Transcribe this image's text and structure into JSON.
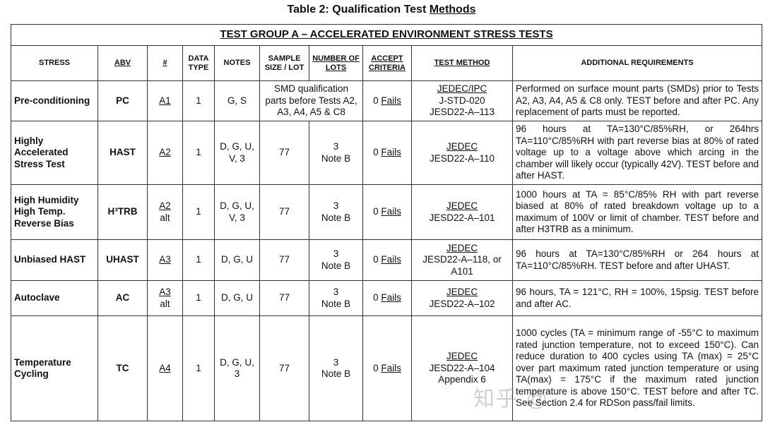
{
  "title": {
    "prefix": "Table 2:  Qualification Test ",
    "underlined": "Methods"
  },
  "group_title": "TEST GROUP A – ACCELERATED ENVIRONMENT STRESS TESTS",
  "headers": {
    "stress": "STRESS",
    "abv": "ABV",
    "num": "#",
    "data_type": "DATA TYPE",
    "notes": "NOTES",
    "sample": "SAMPLE SIZE / LOT",
    "lots": "NUMBER OF LOTS",
    "accept": "ACCEPT CRITERIA",
    "method": "TEST METHOD",
    "additional": "ADDITIONAL REQUIREMENTS"
  },
  "rows": [
    {
      "stress": "Pre-conditioning",
      "abv": "PC",
      "num": "A1",
      "num2": "",
      "data_type": "1",
      "notes": "G, S",
      "sample": "SMD qualification parts before Tests A2, A3, A4, A5 & C8",
      "lots": "",
      "lots2": "",
      "accept_num": "0",
      "accept_word": "Fails",
      "method1": "JEDEC/IPC",
      "method2": "J-STD-020",
      "method3": "JESD22-A–113",
      "additional": "Performed on surface mount parts (SMDs) prior to Tests A2, A3, A4, A5 & C8 only.  TEST before and after PC.  Any replacement of parts must be reported."
    },
    {
      "stress": "Highly Accelerated Stress Test",
      "abv": "HAST",
      "num": "A2",
      "num2": "",
      "data_type": "1",
      "notes": "D, G, U, V, 3",
      "sample": "77",
      "lots": "3",
      "lots2": "Note B",
      "accept_num": "0",
      "accept_word": "Fails",
      "method1": "JEDEC",
      "method2": "JESD22-A–110",
      "method3": "",
      "additional": "96 hours at TA=130°C/85%RH, or 264hrs TA=110°C/85%RH with part reverse bias at 80% of rated voltage up to a voltage above which arcing in the chamber will likely occur (typically 42V).  TEST before and after HAST."
    },
    {
      "stress": "High Humidity High Temp. Reverse Bias",
      "abv": "H³TRB",
      "num": "A2",
      "num2": "alt",
      "data_type": "1",
      "notes": "D, G, U, V, 3",
      "sample": "77",
      "lots": "3",
      "lots2": "Note B",
      "accept_num": "0",
      "accept_word": "Fails",
      "method1": "JEDEC",
      "method2": "JESD22-A–101",
      "method3": "",
      "additional": "1000 hours at TA = 85°C/85% RH with part reverse biased at 80% of rated breakdown voltage up to a maximum of 100V or limit of chamber.  TEST before and after H3TRB as a minimum."
    },
    {
      "stress": "Unbiased HAST",
      "abv": "UHAST",
      "num": "A3",
      "num2": "",
      "data_type": "1",
      "notes": "D, G, U",
      "sample": "77",
      "lots": "3",
      "lots2": "Note B",
      "accept_num": "0",
      "accept_word": "Fails",
      "method1": "JEDEC",
      "method2": "JESD22-A–118, or",
      "method3": "A101",
      "additional": "96 hours at TA=130°C/85%RH or 264 hours at TA=110°C/85%RH. TEST before and after UHAST."
    },
    {
      "stress": "Autoclave",
      "abv": "AC",
      "num": "A3",
      "num2": "alt",
      "data_type": "1",
      "notes": "D, G, U",
      "sample": "77",
      "lots": "3",
      "lots2": "Note B",
      "accept_num": "0",
      "accept_word": "Fails",
      "method1": "JEDEC",
      "method2": "JESD22-A–102",
      "method3": "",
      "additional": "96 hours, TA = 121°C, RH = 100%, 15psig.  TEST before and after AC."
    },
    {
      "stress": "Temperature Cycling",
      "abv": "TC",
      "num": "A4",
      "num2": "",
      "data_type": "1",
      "notes": "D, G, U, 3",
      "sample": "77",
      "lots": "3",
      "lots2": "Note B",
      "accept_num": "0",
      "accept_word": "Fails",
      "method1": "JEDEC",
      "method2": "JESD22-A–104",
      "method3": "Appendix 6",
      "additional": "1000 cycles (TA = minimum range of -55°C to maximum rated junction temperature, not to exceed 150°C).  Can reduce duration to 400 cycles using TA (max) = 25°C over part maximum rated junction temperature or using TA(max) = 175°C if the maximum rated junction temperature is above 150°C.  TEST before and after TC.  See Section 2.4 for RDSon pass/fail limits."
    }
  ],
  "watermark": "知乎 @"
}
